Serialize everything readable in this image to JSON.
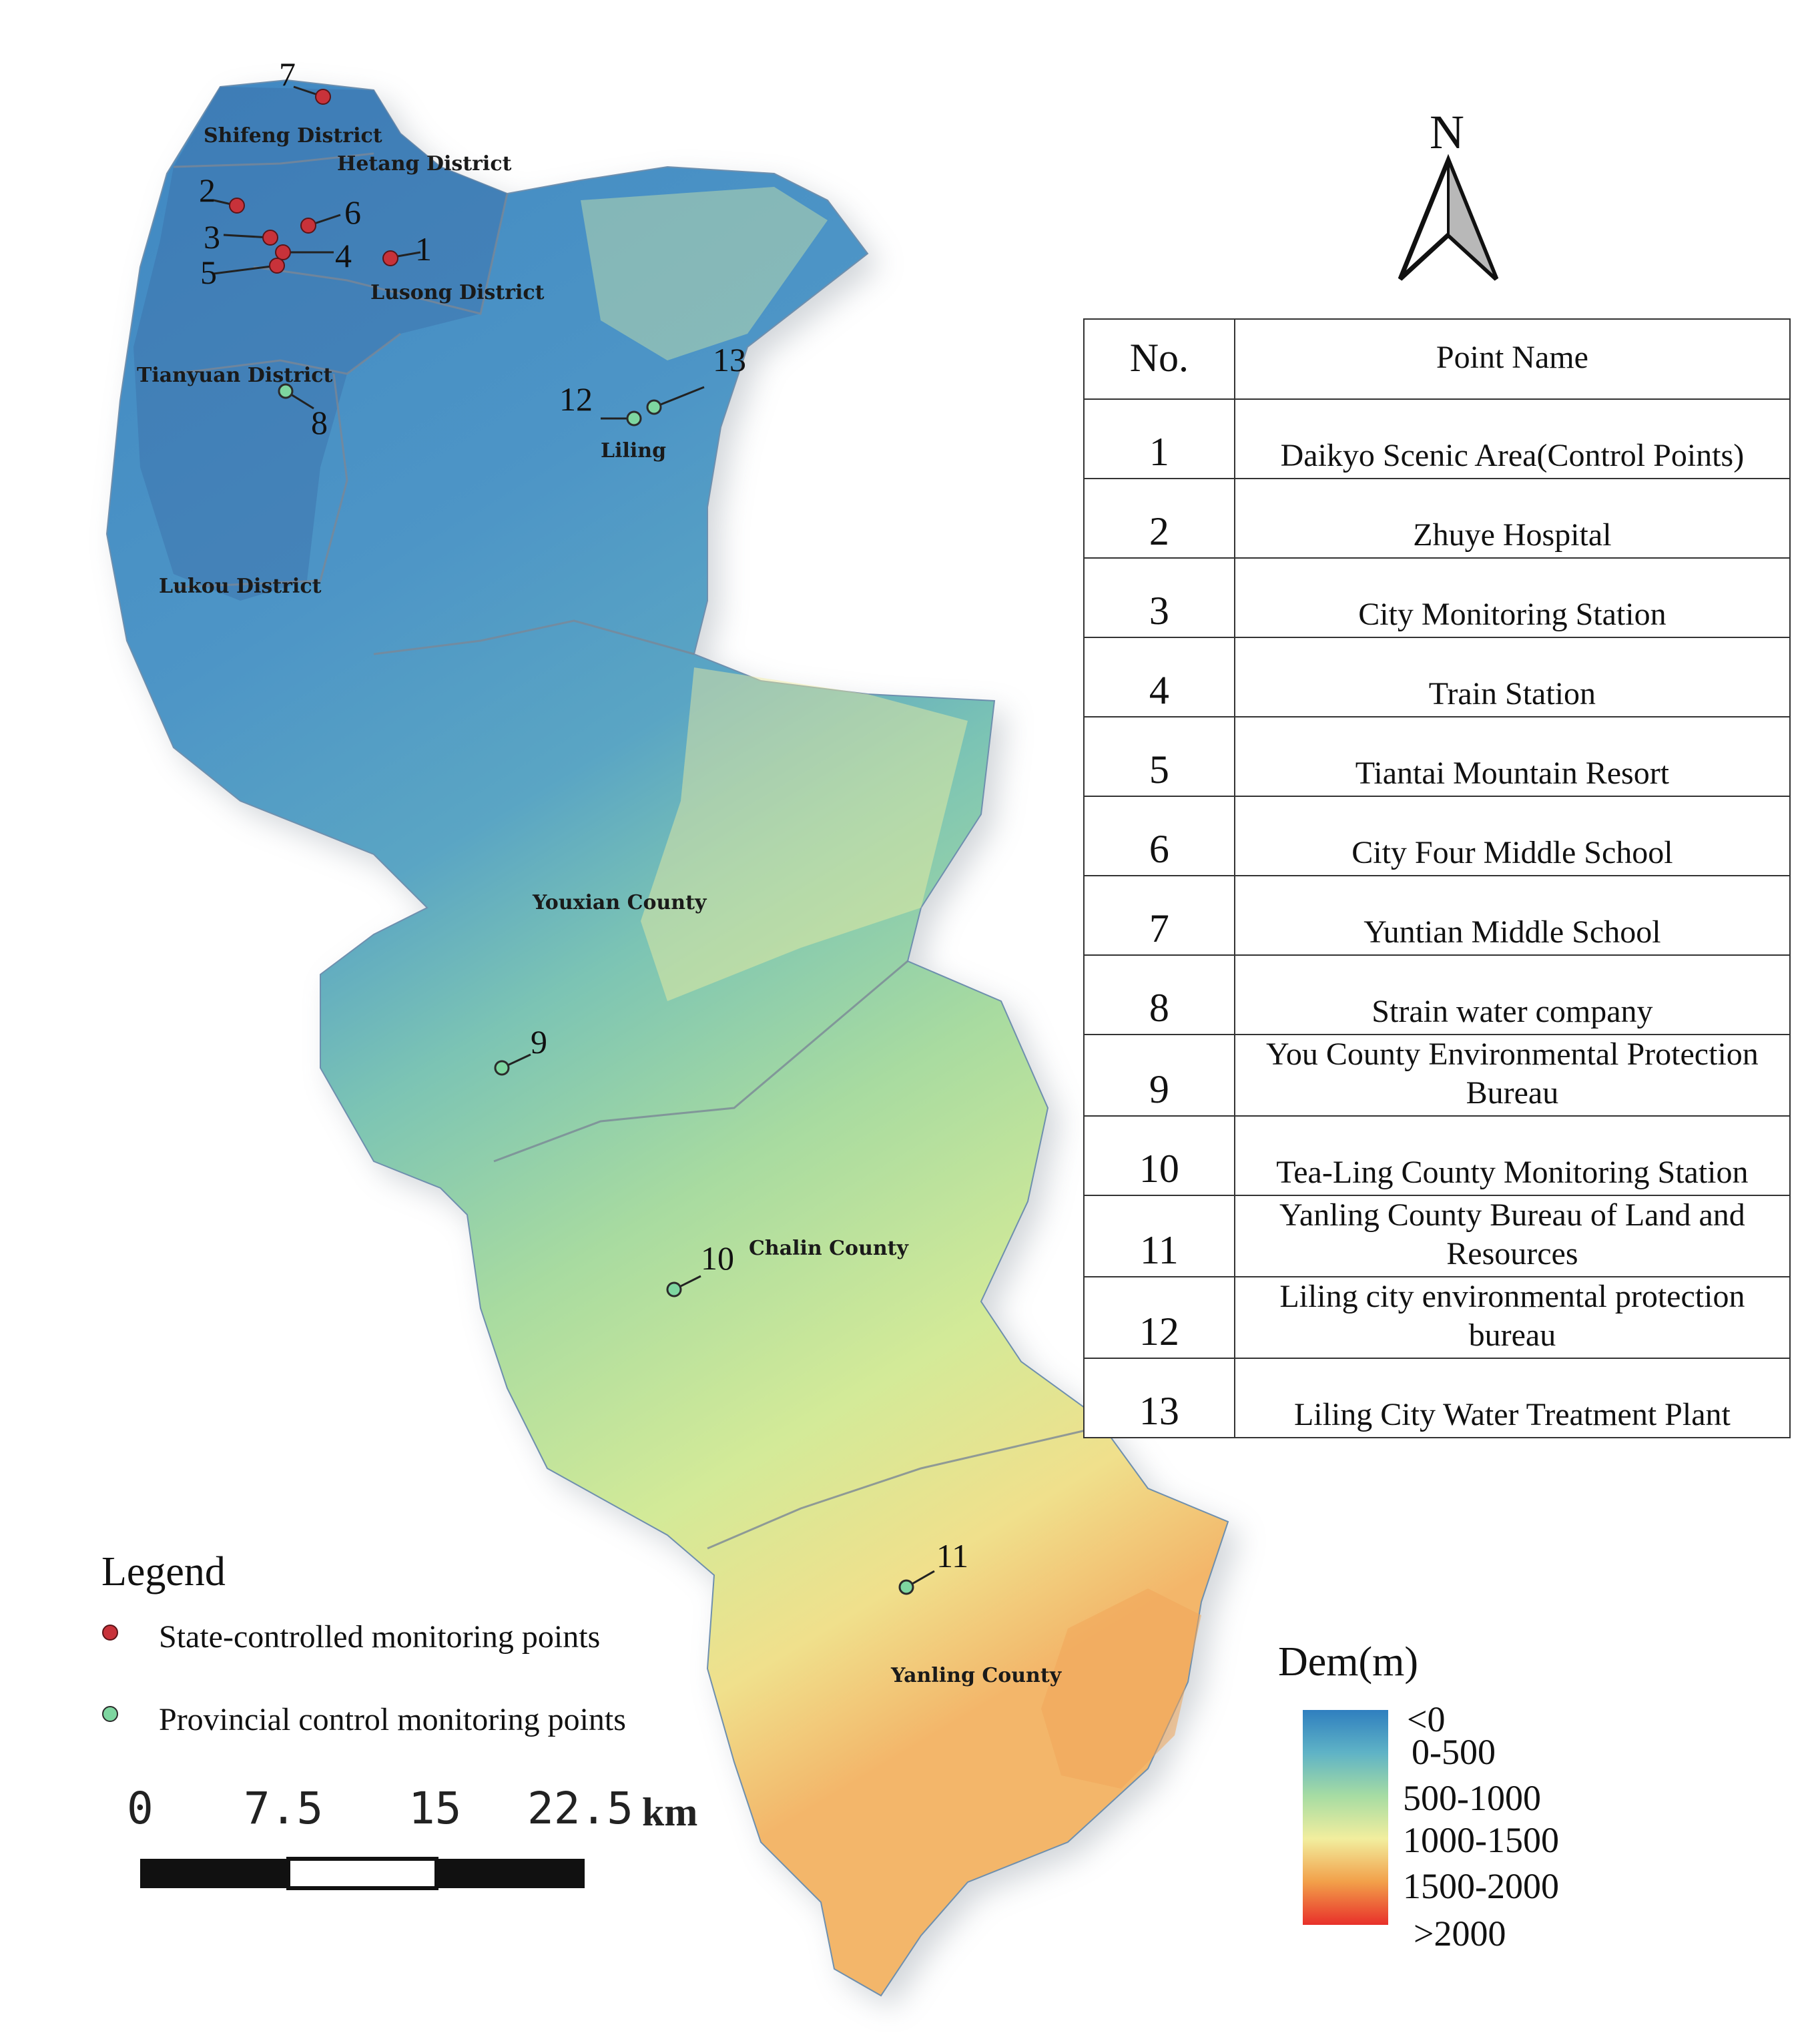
{
  "north": {
    "letter": "N"
  },
  "regions": [
    {
      "name": "Shifeng District"
    },
    {
      "name": "Hetang District"
    },
    {
      "name": "Lusong District"
    },
    {
      "name": "Tianyuan District"
    },
    {
      "name": "Liling"
    },
    {
      "name": "Lukou District"
    },
    {
      "name": "Youxian County"
    },
    {
      "name": "Chalin County"
    },
    {
      "name": "Yanling County"
    }
  ],
  "points": [
    {
      "no": "1",
      "type": "state"
    },
    {
      "no": "2",
      "type": "state"
    },
    {
      "no": "3",
      "type": "state"
    },
    {
      "no": "4",
      "type": "state"
    },
    {
      "no": "5",
      "type": "state"
    },
    {
      "no": "6",
      "type": "state"
    },
    {
      "no": "7",
      "type": "state"
    },
    {
      "no": "8",
      "type": "provincial"
    },
    {
      "no": "9",
      "type": "provincial"
    },
    {
      "no": "10",
      "type": "provincial"
    },
    {
      "no": "11",
      "type": "provincial"
    },
    {
      "no": "12",
      "type": "provincial"
    },
    {
      "no": "13",
      "type": "provincial"
    }
  ],
  "table": {
    "header_no": "No.",
    "header_name": "Point Name",
    "rows": [
      {
        "no": "1",
        "name": "Daikyo Scenic Area(Control Points)"
      },
      {
        "no": "2",
        "name": "Zhuye Hospital"
      },
      {
        "no": "3",
        "name": "City Monitoring Station"
      },
      {
        "no": "4",
        "name": "Train Station"
      },
      {
        "no": "5",
        "name": "Tiantai Mountain Resort"
      },
      {
        "no": "6",
        "name": "City Four Middle School"
      },
      {
        "no": "7",
        "name": "Yuntian Middle School"
      },
      {
        "no": "8",
        "name": "Strain water company"
      },
      {
        "no": "9",
        "name": "You County Environmental Protection Bureau"
      },
      {
        "no": "10",
        "name": "Tea-Ling County Monitoring Station"
      },
      {
        "no": "11",
        "name": "Yanling County Bureau of Land and Resources"
      },
      {
        "no": "12",
        "name": "Liling city environmental protection bureau"
      },
      {
        "no": "13",
        "name": "Liling City Water Treatment Plant"
      }
    ]
  },
  "legend": {
    "title": "Legend",
    "state_label": "State-controlled monitoring points",
    "provincial_label": "Provincial control monitoring points",
    "state_color": "#c8323a",
    "provincial_color": "#7ed6a0"
  },
  "scale_bar": {
    "ticks": [
      "0",
      "7.5",
      "15",
      "22.5"
    ],
    "unit": "km"
  },
  "dem": {
    "title": "Dem(m)",
    "classes": [
      "<0",
      "0-500",
      "500-1000",
      "1000-1500",
      "1500-2000",
      ">2000"
    ],
    "colors": [
      "#2f7fbf",
      "#5fb3c6",
      "#a6dca3",
      "#f2ee9e",
      "#f2a04a",
      "#e8302a"
    ]
  }
}
